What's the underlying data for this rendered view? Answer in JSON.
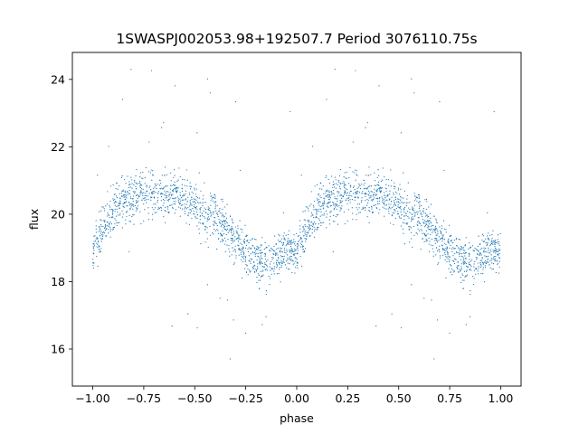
{
  "chart_data": {
    "type": "scatter",
    "title": "1SWASPJ002053.98+192507.7 Period 3076110.75s",
    "xlabel": "phase",
    "ylabel": "flux",
    "xlim": [
      -1.1,
      1.1
    ],
    "ylim": [
      14.9,
      24.8
    ],
    "xticks": [
      -1.0,
      -0.75,
      -0.5,
      -0.25,
      0.0,
      0.25,
      0.5,
      0.75,
      1.0
    ],
    "xtick_labels": [
      "−1.00",
      "−0.75",
      "−0.50",
      "−0.25",
      "0.00",
      "0.25",
      "0.50",
      "0.75",
      "1.00"
    ],
    "yticks": [
      16,
      18,
      20,
      22,
      24
    ],
    "ytick_labels": [
      "16",
      "18",
      "20",
      "22",
      "24"
    ],
    "grid": false,
    "marker_color": "#1f77b4",
    "series": [
      {
        "profile": {
          "phase": [
            0.0,
            0.05,
            0.1,
            0.15,
            0.2,
            0.25,
            0.3,
            0.35,
            0.4,
            0.45,
            0.5,
            0.55,
            0.6,
            0.65,
            0.7,
            0.75,
            0.8,
            0.85,
            0.9,
            0.95,
            1.0
          ],
          "flux": [
            18.9,
            19.6,
            20.1,
            20.4,
            20.5,
            20.6,
            20.7,
            20.5,
            20.7,
            20.6,
            20.2,
            20.0,
            20.0,
            19.6,
            19.2,
            18.9,
            18.7,
            18.5,
            18.7,
            18.9,
            18.9
          ]
        }
      }
    ]
  }
}
